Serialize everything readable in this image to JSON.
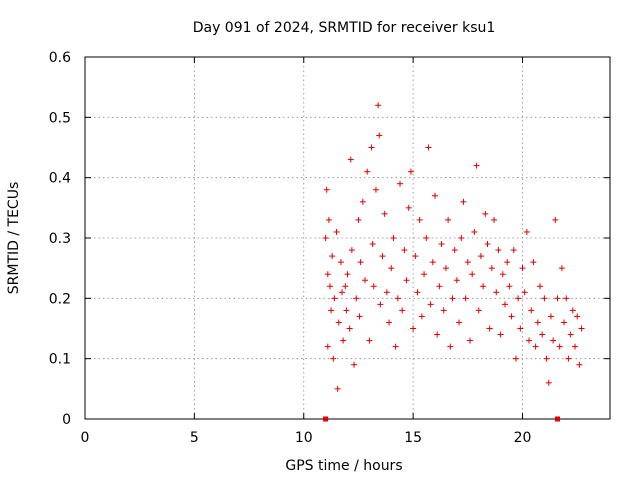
{
  "chart_data": {
    "type": "scatter",
    "title": "Day 091 of 2024, SRMTID for receiver ksu1",
    "xlabel": "GPS time / hours",
    "ylabel": "SRMTID / TECUs",
    "xlim": [
      0,
      24
    ],
    "ylim": [
      0,
      0.6
    ],
    "xticks": [
      0,
      5,
      10,
      15,
      20
    ],
    "yticks": [
      0,
      0.1,
      0.2,
      0.3,
      0.4,
      0.5,
      0.6
    ],
    "xtick_labels": [
      "0",
      "5",
      "10",
      "15",
      "20"
    ],
    "ytick_labels": [
      "0",
      "0.1",
      "0.2",
      "0.3",
      "0.4",
      "0.5",
      "0.6"
    ],
    "grid": true,
    "marker": "plus",
    "color": "#e00000",
    "series": [
      {
        "name": "SRMTID",
        "points": [
          [
            11.0,
            0.3
          ],
          [
            11.05,
            0.38
          ],
          [
            11.1,
            0.24
          ],
          [
            11.1,
            0.12
          ],
          [
            11.15,
            0.33
          ],
          [
            11.2,
            0.22
          ],
          [
            11.25,
            0.18
          ],
          [
            11.3,
            0.27
          ],
          [
            11.35,
            0.1
          ],
          [
            11.4,
            0.2
          ],
          [
            11.5,
            0.31
          ],
          [
            11.55,
            0.05
          ],
          [
            11.6,
            0.16
          ],
          [
            11.7,
            0.26
          ],
          [
            11.75,
            0.21
          ],
          [
            11.8,
            0.13
          ],
          [
            11.9,
            0.22
          ],
          [
            11.95,
            0.18
          ],
          [
            12.0,
            0.24
          ],
          [
            12.1,
            0.15
          ],
          [
            12.15,
            0.43
          ],
          [
            12.2,
            0.28
          ],
          [
            12.3,
            0.09
          ],
          [
            12.4,
            0.2
          ],
          [
            12.5,
            0.33
          ],
          [
            12.55,
            0.17
          ],
          [
            12.6,
            0.26
          ],
          [
            12.7,
            0.36
          ],
          [
            12.8,
            0.23
          ],
          [
            12.9,
            0.41
          ],
          [
            13.0,
            0.13
          ],
          [
            13.1,
            0.45
          ],
          [
            13.15,
            0.29
          ],
          [
            13.2,
            0.22
          ],
          [
            13.3,
            0.38
          ],
          [
            13.4,
            0.52
          ],
          [
            13.45,
            0.47
          ],
          [
            13.5,
            0.19
          ],
          [
            13.6,
            0.27
          ],
          [
            13.7,
            0.34
          ],
          [
            13.8,
            0.21
          ],
          [
            13.9,
            0.16
          ],
          [
            14.0,
            0.25
          ],
          [
            14.1,
            0.3
          ],
          [
            14.2,
            0.12
          ],
          [
            14.3,
            0.2
          ],
          [
            14.4,
            0.39
          ],
          [
            14.5,
            0.18
          ],
          [
            14.6,
            0.28
          ],
          [
            14.7,
            0.23
          ],
          [
            14.8,
            0.35
          ],
          [
            14.9,
            0.41
          ],
          [
            15.0,
            0.15
          ],
          [
            15.1,
            0.27
          ],
          [
            15.2,
            0.21
          ],
          [
            15.3,
            0.33
          ],
          [
            15.4,
            0.17
          ],
          [
            15.5,
            0.24
          ],
          [
            15.6,
            0.3
          ],
          [
            15.7,
            0.45
          ],
          [
            15.8,
            0.19
          ],
          [
            15.9,
            0.26
          ],
          [
            16.0,
            0.37
          ],
          [
            16.1,
            0.14
          ],
          [
            16.2,
            0.22
          ],
          [
            16.3,
            0.29
          ],
          [
            16.4,
            0.18
          ],
          [
            16.5,
            0.25
          ],
          [
            16.6,
            0.33
          ],
          [
            16.7,
            0.12
          ],
          [
            16.8,
            0.2
          ],
          [
            16.9,
            0.28
          ],
          [
            17.0,
            0.23
          ],
          [
            17.1,
            0.16
          ],
          [
            17.2,
            0.3
          ],
          [
            17.3,
            0.36
          ],
          [
            17.4,
            0.2
          ],
          [
            17.5,
            0.26
          ],
          [
            17.6,
            0.13
          ],
          [
            17.7,
            0.24
          ],
          [
            17.8,
            0.31
          ],
          [
            17.9,
            0.42
          ],
          [
            18.0,
            0.18
          ],
          [
            18.1,
            0.27
          ],
          [
            18.2,
            0.22
          ],
          [
            18.3,
            0.34
          ],
          [
            18.4,
            0.29
          ],
          [
            18.5,
            0.15
          ],
          [
            18.6,
            0.25
          ],
          [
            18.7,
            0.33
          ],
          [
            18.8,
            0.21
          ],
          [
            18.9,
            0.28
          ],
          [
            19.0,
            0.14
          ],
          [
            19.1,
            0.24
          ],
          [
            19.2,
            0.19
          ],
          [
            19.3,
            0.26
          ],
          [
            19.4,
            0.22
          ],
          [
            19.5,
            0.17
          ],
          [
            19.6,
            0.28
          ],
          [
            19.7,
            0.1
          ],
          [
            19.8,
            0.2
          ],
          [
            19.9,
            0.15
          ],
          [
            20.0,
            0.25
          ],
          [
            20.1,
            0.21
          ],
          [
            20.2,
            0.31
          ],
          [
            20.3,
            0.13
          ],
          [
            20.4,
            0.18
          ],
          [
            20.5,
            0.26
          ],
          [
            20.6,
            0.12
          ],
          [
            20.7,
            0.16
          ],
          [
            20.8,
            0.22
          ],
          [
            20.9,
            0.14
          ],
          [
            21.0,
            0.2
          ],
          [
            21.1,
            0.1
          ],
          [
            21.2,
            0.06
          ],
          [
            21.3,
            0.17
          ],
          [
            21.4,
            0.13
          ],
          [
            21.5,
            0.33
          ],
          [
            21.6,
            0.2
          ],
          [
            21.7,
            0.12
          ],
          [
            21.8,
            0.25
          ],
          [
            21.9,
            0.16
          ],
          [
            22.0,
            0.2
          ],
          [
            22.1,
            0.1
          ],
          [
            22.2,
            0.14
          ],
          [
            22.3,
            0.18
          ],
          [
            22.4,
            0.12
          ],
          [
            22.5,
            0.17
          ],
          [
            22.6,
            0.09
          ],
          [
            22.7,
            0.15
          ]
        ]
      }
    ],
    "baseline_markers": [
      11.0,
      21.6
    ]
  }
}
